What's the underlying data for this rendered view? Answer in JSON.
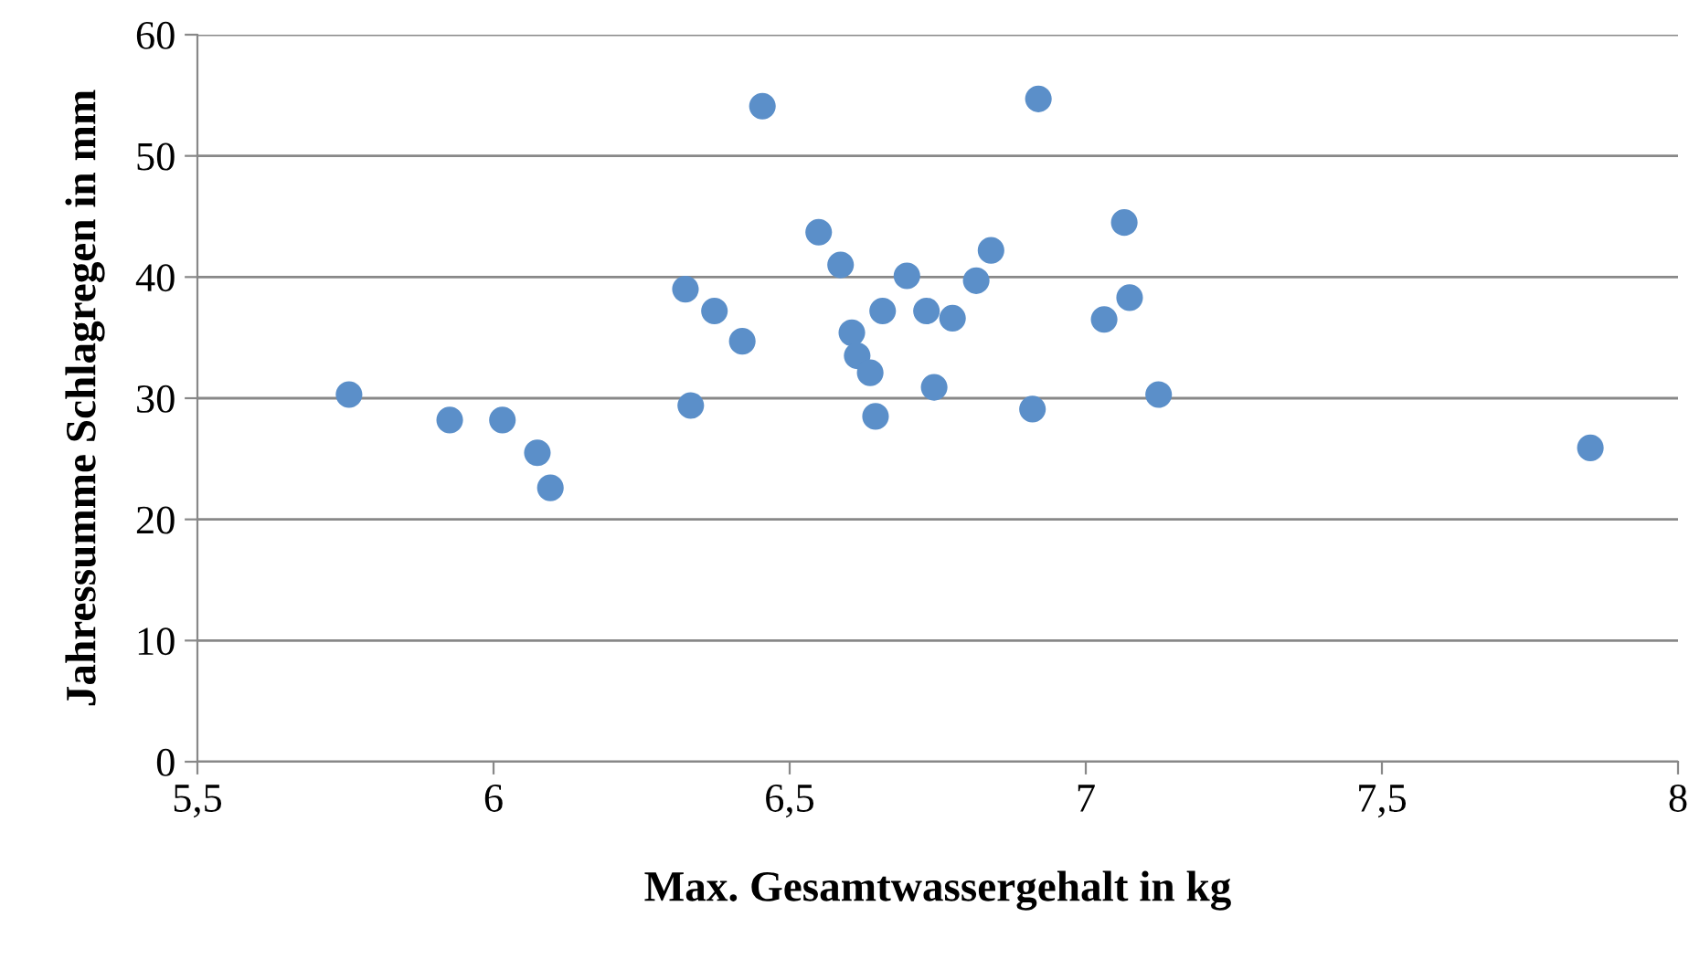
{
  "chart_data": {
    "type": "scatter",
    "xlabel": "Max. Gesamtwassergehalt in kg",
    "ylabel": "Jahressumme Schlagregen in mm",
    "x": [
      5.756,
      5.926,
      6.015,
      6.074,
      6.096,
      6.324,
      6.333,
      6.373,
      6.42,
      6.454,
      6.549,
      6.586,
      6.605,
      6.614,
      6.636,
      6.645,
      6.657,
      6.698,
      6.731,
      6.744,
      6.775,
      6.815,
      6.84,
      6.91,
      6.92,
      7.031,
      7.065,
      7.074,
      7.123,
      7.852
    ],
    "values": [
      30.3,
      28.2,
      28.2,
      25.5,
      22.6,
      39.0,
      29.4,
      37.2,
      34.7,
      54.1,
      43.7,
      41.0,
      35.4,
      33.5,
      32.1,
      28.5,
      37.2,
      40.1,
      37.2,
      30.9,
      36.6,
      39.7,
      42.2,
      29.1,
      54.7,
      36.5,
      44.5,
      38.3,
      30.3,
      25.9
    ],
    "color": "#5b8fc9",
    "marker": "circle",
    "xlim": [
      5.5,
      8
    ],
    "xticks": [
      {
        "value": 5.5,
        "label": "5,5"
      },
      6,
      {
        "value": 6.5,
        "label": "6,5"
      },
      7,
      {
        "value": 7.5,
        "label": "7,5"
      },
      8
    ],
    "ylim": [
      0,
      60
    ],
    "yticks": [
      0,
      10,
      20,
      30,
      40,
      50,
      60
    ],
    "grid": "y",
    "legend": false
  }
}
